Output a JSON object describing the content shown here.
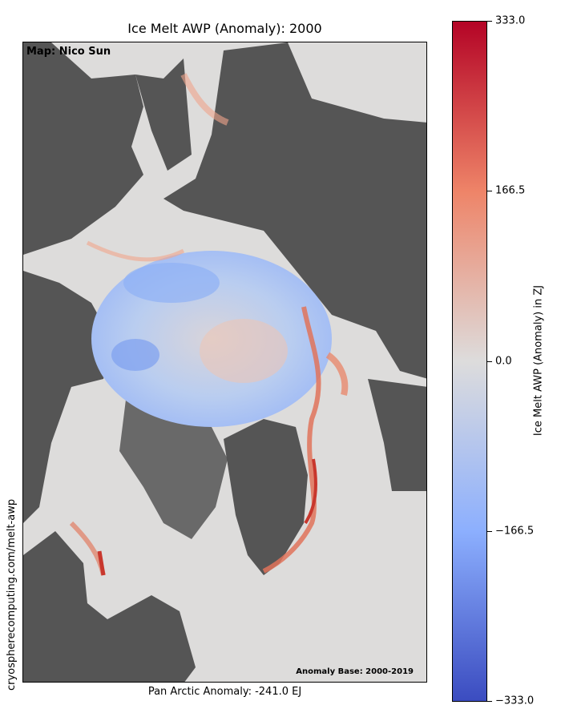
{
  "title": "Ice Melt AWP (Anomaly): 2000",
  "map": {
    "credit": "Map: Nico Sun",
    "anomaly_base": "Anomaly Base: 2000-2019",
    "footer": "Pan Arctic Anomaly: -241.0 EJ",
    "source_url": "cryospherecomputing.com/melt-awp"
  },
  "colorbar": {
    "title": "Ice Melt AWP (Anomaly) in ZJ",
    "min": -333.0,
    "max": 333.0,
    "tick_labels": [
      "333.0",
      "166.5",
      "0.0",
      "−166.5",
      "−333.0"
    ],
    "colors": {
      "max": "#b40426",
      "high": "#ee8468",
      "mid": "#dddcdc",
      "low": "#8caffe",
      "min": "#3b4cc0"
    }
  },
  "palette": {
    "land": "#555555",
    "ocean": "#dddcdb",
    "positive_anomaly": "#f2a58a",
    "strong_positive": "#c8372d",
    "negative_anomaly": "#a7c2f5",
    "strong_negative": "#7e9ff0"
  }
}
